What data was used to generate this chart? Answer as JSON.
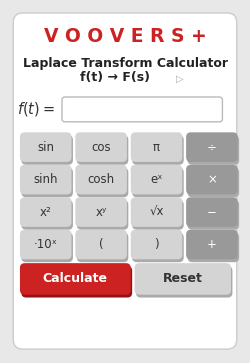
{
  "bg_color": "#e8e8e8",
  "title_text": "V O O V E R S +",
  "title_color": "#cc2222",
  "subtitle1": "Laplace Transform Calculator",
  "subtitle2": "f(t) → F(s)",
  "subtitle_color": "#222222",
  "button_rows": [
    [
      "sin",
      "cos",
      "π",
      "÷"
    ],
    [
      "sinh",
      "cosh",
      "eˣ",
      "×"
    ],
    [
      "x²",
      "xʸ",
      "√x",
      "−"
    ],
    [
      "·10ˣ",
      "(",
      ")",
      "+"
    ]
  ],
  "button_colors": [
    [
      "#d4d4d4",
      "#d4d4d4",
      "#d4d4d4",
      "#999999"
    ],
    [
      "#d4d4d4",
      "#d4d4d4",
      "#d4d4d4",
      "#999999"
    ],
    [
      "#d4d4d4",
      "#d4d4d4",
      "#d4d4d4",
      "#999999"
    ],
    [
      "#d4d4d4",
      "#d4d4d4",
      "#d4d4d4",
      "#999999"
    ]
  ],
  "button_shadow_color": "#aaaaaa",
  "button_text_color": "#333333",
  "operator_text_color": "#ffffff",
  "calc_button_color": "#cc2222",
  "calc_button_shadow": "#991111",
  "calc_button_text": "Calculate",
  "reset_button_color": "#d4d4d4",
  "reset_button_shadow": "#aaaaaa",
  "reset_button_text": "Reset",
  "calc_text_color": "#ffffff",
  "reset_text_color": "#333333",
  "card_color": "#ffffff",
  "card_edge_color": "#cccccc"
}
